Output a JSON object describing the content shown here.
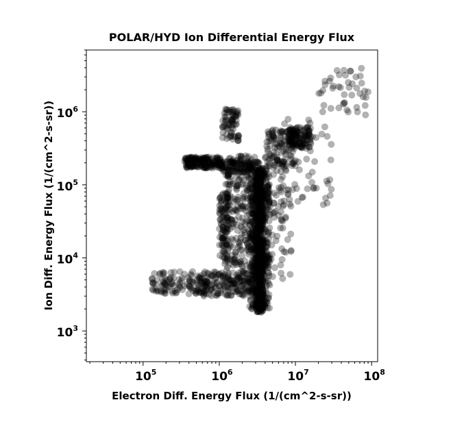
{
  "chart_data": {
    "type": "scatter",
    "title": "POLAR/HYD  Ion Differential Energy Flux",
    "xlabel": "Electron Diff. Energy Flux (1/(cm^2-s-sr))",
    "ylabel": "Ion Diff. Energy Flux (1/(cm^2-s-sr))",
    "xscale": "log",
    "yscale": "log",
    "xlim": [
      18000,
      120000000
    ],
    "ylim": [
      380,
      7000000
    ],
    "x_ticks": [
      {
        "base": "10",
        "exp": "5",
        "value": 100000
      },
      {
        "base": "10",
        "exp": "6",
        "value": 1000000
      },
      {
        "base": "10",
        "exp": "7",
        "value": 10000000
      },
      {
        "base": "10",
        "exp": "8",
        "value": 100000000
      }
    ],
    "y_ticks": [
      {
        "base": "10",
        "exp": "3",
        "value": 1000
      },
      {
        "base": "10",
        "exp": "4",
        "value": 10000
      },
      {
        "base": "10",
        "exp": "5",
        "value": 100000
      },
      {
        "base": "10",
        "exp": "6",
        "value": 1000000
      }
    ],
    "grid": false,
    "marker_color": "#000000",
    "marker_opacity": 0.3,
    "clusters": [
      {
        "x": [
          3000000,
          3800000
        ],
        "y": [
          1800,
          170000
        ],
        "count": 560
      },
      {
        "x": [
          2500000,
          4600000
        ],
        "y": [
          2000,
          180000
        ],
        "count": 380
      },
      {
        "x": [
          1200000,
          3000000
        ],
        "y": [
          3000,
          250000
        ],
        "count": 320
      },
      {
        "x": [
          1000000,
          1300000
        ],
        "y": [
          8000,
          80000
        ],
        "count": 90
      },
      {
        "x": [
          1100000,
          1800000
        ],
        "y": [
          400000,
          1100000
        ],
        "count": 70
      },
      {
        "x": [
          350000,
          1100000
        ],
        "y": [
          170000,
          240000
        ],
        "count": 170
      },
      {
        "x": [
          1000000,
          3500000
        ],
        "y": [
          150000,
          210000
        ],
        "count": 90
      },
      {
        "x": [
          4000000,
          10000000
        ],
        "y": [
          170000,
          550000
        ],
        "count": 110
      },
      {
        "x": [
          8000000,
          16000000
        ],
        "y": [
          320000,
          620000
        ],
        "count": 110
      },
      {
        "x": [
          5000000,
          30000000
        ],
        "y": [
          50000,
          800000
        ],
        "count": 70
      },
      {
        "x": [
          4000000,
          9000000
        ],
        "y": [
          5000,
          100000
        ],
        "count": 60
      },
      {
        "x": [
          130000,
          700000
        ],
        "y": [
          3200,
          6500
        ],
        "count": 120
      },
      {
        "x": [
          600000,
          2500000
        ],
        "y": [
          3000,
          6500
        ],
        "count": 110
      },
      {
        "x": [
          20000000,
          90000000
        ],
        "y": [
          900000,
          4000000
        ],
        "count": 45
      }
    ]
  }
}
